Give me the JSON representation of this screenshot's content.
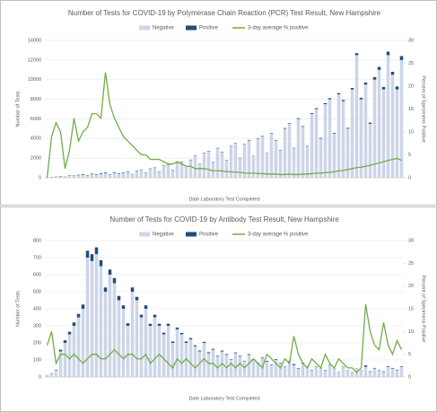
{
  "chart_data": [
    {
      "type": "bar",
      "title": "Number of Tests for COVID-19 by Polymerase Chain Reaction (PCR) Test Result, New Hampshire",
      "x_label": "Date Laboratory Test Completed",
      "y_label": "Number of Tests",
      "y2_label": "Percent of Specimens Positive",
      "categories": [
        null,
        null,
        null,
        null,
        null,
        null,
        null,
        null,
        null,
        null,
        null,
        null,
        null,
        null,
        null,
        null,
        null,
        null,
        null,
        null,
        null,
        null,
        null,
        null,
        null,
        null,
        null,
        null,
        null,
        null,
        null,
        null,
        null,
        null,
        null,
        null,
        null,
        null,
        null,
        null,
        null,
        null,
        null,
        null,
        null,
        null,
        null,
        null,
        null,
        null,
        null,
        null,
        null,
        null,
        null,
        null,
        null,
        null,
        null,
        null,
        null,
        null,
        null,
        null,
        null,
        null,
        null,
        null,
        null,
        null,
        null,
        null,
        null,
        null,
        null,
        null,
        null,
        null,
        null,
        null
      ],
      "series": [
        {
          "name": "Negative",
          "color": "#cdd5e8",
          "values": [
            50,
            80,
            120,
            150,
            100,
            200,
            180,
            250,
            300,
            200,
            350,
            300,
            400,
            450,
            300,
            500,
            400,
            500,
            600,
            350,
            700,
            800,
            500,
            900,
            1000,
            600,
            1200,
            1300,
            800,
            1500,
            1600,
            1000,
            1800,
            2200,
            1400,
            2500,
            2700,
            1600,
            3000,
            2600,
            1800,
            3200,
            3500,
            2000,
            3400,
            3800,
            2200,
            4000,
            4200,
            2500,
            4500,
            3800,
            2800,
            5000,
            5500,
            3000,
            6000,
            5200,
            3200,
            6500,
            7000,
            4000,
            7500,
            8000,
            4500,
            8500,
            7800,
            5000,
            9000,
            12500,
            8000,
            9500,
            5500,
            10000,
            11000,
            9000,
            12500,
            10500,
            9000,
            12000
          ]
        },
        {
          "name": "Positive",
          "color": "#1f4e79",
          "values": [
            5,
            10,
            20,
            30,
            20,
            40,
            40,
            50,
            60,
            40,
            60,
            50,
            70,
            70,
            40,
            60,
            50,
            50,
            50,
            30,
            40,
            40,
            30,
            40,
            40,
            30,
            40,
            40,
            30,
            40,
            40,
            30,
            40,
            40,
            30,
            40,
            40,
            30,
            40,
            40,
            30,
            40,
            40,
            30,
            40,
            50,
            30,
            40,
            50,
            30,
            50,
            50,
            40,
            60,
            60,
            40,
            70,
            60,
            40,
            80,
            90,
            60,
            100,
            110,
            70,
            120,
            120,
            80,
            150,
            200,
            150,
            200,
            120,
            250,
            300,
            250,
            350,
            300,
            300,
            400
          ]
        },
        {
          "name": "3-day average % positive",
          "color": "#70ad47",
          "axis": "y2",
          "values": [
            0,
            9,
            12,
            10,
            2,
            6,
            13,
            8,
            10,
            11,
            14,
            14,
            13,
            23,
            16,
            13,
            11,
            9,
            8,
            7,
            6,
            5,
            5,
            4,
            4,
            4,
            3.5,
            3,
            3,
            3.5,
            3,
            2.5,
            2.5,
            2,
            2,
            2,
            1.8,
            1.5,
            1.5,
            1.5,
            1.3,
            1.3,
            1.2,
            1.2,
            1,
            1,
            1,
            0.9,
            0.9,
            0.8,
            0.8,
            0.8,
            0.7,
            0.7,
            0.8,
            0.7,
            0.7,
            0.8,
            0.8,
            0.9,
            1,
            1,
            1.1,
            1.2,
            1.3,
            1.5,
            1.6,
            1.8,
            2,
            2.2,
            2.3,
            2.5,
            2.7,
            3,
            3.2,
            3.5,
            3.8,
            4,
            4.2,
            3.8
          ]
        }
      ],
      "ylim": [
        0,
        14000
      ],
      "yticks": [
        0,
        2000,
        4000,
        6000,
        8000,
        10000,
        12000,
        14000
      ],
      "y2lim": [
        0,
        30
      ],
      "y2ticks": [
        0,
        5,
        10,
        15,
        20,
        25,
        30
      ],
      "stacked": true,
      "grid": true
    },
    {
      "type": "bar",
      "title": "Number of Tests for COVID-19 by Antibody Test Result, New Hampshire",
      "x_label": "Date Laboratory Test Completed",
      "y_label": "Number of Tests",
      "y2_label": "Percent of Specimens Positive",
      "categories": [
        null,
        null,
        null,
        null,
        null,
        null,
        null,
        null,
        null,
        null,
        null,
        null,
        null,
        null,
        null,
        null,
        null,
        null,
        null,
        null,
        null,
        null,
        null,
        null,
        null,
        null,
        null,
        null,
        null,
        null,
        null,
        null,
        null,
        null,
        null,
        null,
        null,
        null,
        null,
        null,
        null,
        null,
        null,
        null,
        null,
        null,
        null,
        null,
        null,
        null,
        null,
        null,
        null,
        null,
        null,
        null,
        null,
        null,
        null,
        null,
        null,
        null,
        null,
        null,
        null,
        null,
        null,
        null,
        null,
        null,
        null,
        null,
        null,
        null,
        null,
        null,
        null,
        null,
        null,
        null
      ],
      "series": [
        {
          "name": "Negative",
          "color": "#cdd5e8",
          "values": [
            10,
            20,
            40,
            150,
            200,
            250,
            300,
            350,
            400,
            700,
            680,
            720,
            650,
            500,
            600,
            550,
            450,
            400,
            300,
            500,
            450,
            350,
            400,
            300,
            350,
            300,
            250,
            300,
            200,
            280,
            250,
            200,
            220,
            180,
            150,
            200,
            140,
            160,
            120,
            150,
            130,
            100,
            140,
            120,
            90,
            130,
            100,
            80,
            110,
            90,
            70,
            100,
            80,
            60,
            90,
            70,
            50,
            80,
            60,
            40,
            60,
            50,
            40,
            70,
            50,
            30,
            60,
            40,
            30,
            50,
            40,
            60,
            30,
            50,
            40,
            30,
            60,
            50,
            40,
            60
          ]
        },
        {
          "name": "Positive",
          "color": "#1f4e79",
          "values": [
            1,
            2,
            3,
            10,
            15,
            15,
            20,
            20,
            25,
            40,
            40,
            40,
            35,
            25,
            30,
            30,
            25,
            20,
            15,
            25,
            20,
            15,
            20,
            12,
            15,
            12,
            10,
            12,
            8,
            10,
            8,
            8,
            8,
            6,
            5,
            6,
            5,
            5,
            4,
            5,
            4,
            3,
            4,
            4,
            3,
            4,
            4,
            3,
            4,
            4,
            3,
            4,
            3,
            2,
            3,
            6,
            3,
            3,
            2,
            2,
            2,
            1,
            2,
            2,
            1,
            1,
            2,
            1,
            1,
            1,
            1,
            8,
            3,
            3,
            2,
            3,
            4,
            3,
            3,
            3
          ]
        },
        {
          "name": "3-day average % positive",
          "color": "#70ad47",
          "axis": "y2",
          "values": [
            7,
            10,
            3,
            5,
            5,
            4,
            5,
            4,
            3,
            4,
            5,
            5,
            4,
            4,
            5,
            6,
            5,
            4,
            5,
            5,
            4,
            4,
            5,
            3,
            4,
            5,
            4,
            3,
            2,
            4,
            3,
            4,
            3,
            2,
            3,
            4,
            3,
            3,
            2,
            3,
            2,
            3,
            2,
            3,
            2,
            3,
            4,
            3,
            2,
            5,
            4,
            3,
            2,
            4,
            3,
            9,
            5,
            3,
            2,
            4,
            3,
            2,
            5,
            3,
            2,
            4,
            3,
            2,
            2,
            1,
            2,
            16,
            10,
            7,
            6,
            12,
            7,
            5,
            8,
            6
          ]
        }
      ],
      "ylim": [
        0,
        800
      ],
      "yticks": [
        0,
        100,
        200,
        300,
        400,
        500,
        600,
        700,
        800
      ],
      "y2lim": [
        0,
        30
      ],
      "y2ticks": [
        0,
        5,
        10,
        15,
        20,
        25,
        30
      ],
      "stacked": true,
      "grid": true
    }
  ]
}
